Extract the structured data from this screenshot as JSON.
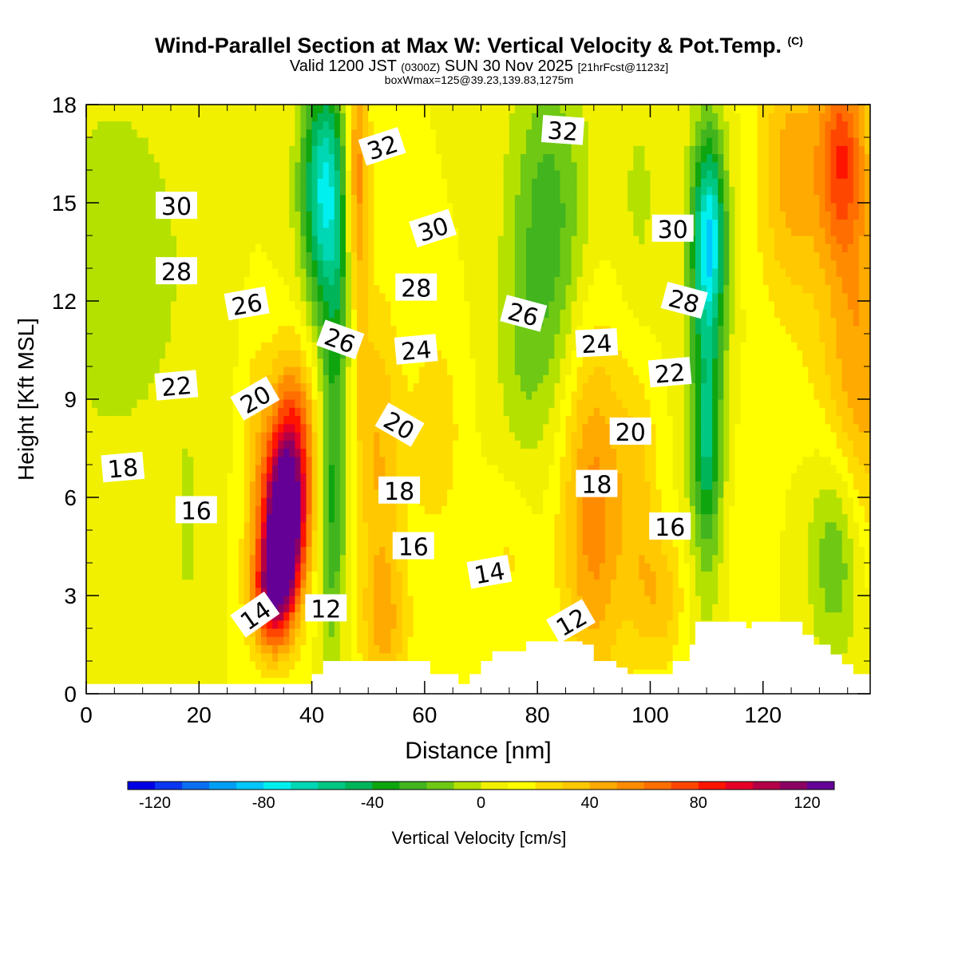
{
  "title": {
    "main": "Wind-Parallel Section at Max W: Vertical Velocity & Pot.Temp.",
    "copyright": "(C)",
    "valid_prefix": "Valid 1200 JST",
    "valid_z": "(0300Z)",
    "valid_date": "SUN 30 Nov 2025",
    "forecast": "[21hrFcst@1123z]",
    "box_info": "boxWmax=125@39.23,139.83,1275m"
  },
  "chart_data": {
    "type": "heatmap",
    "title": "Wind-Parallel Section at Max W: Vertical Velocity & Pot.Temp.",
    "xlabel": "Distance [nm]",
    "ylabel": "Height [Kft MSL]",
    "xlim": [
      0,
      139
    ],
    "ylim": [
      0,
      18
    ],
    "x_ticks": [
      "0",
      "20",
      "40",
      "60",
      "80",
      "100",
      "120"
    ],
    "y_ticks": [
      "0",
      "3",
      "6",
      "9",
      "12",
      "15",
      "18"
    ],
    "colorbar": {
      "label": "Vertical Velocity [cm/s]",
      "ticks": [
        "-120",
        "-80",
        "-40",
        "0",
        "40",
        "80",
        "120"
      ],
      "range": [
        -130,
        130
      ],
      "step": 10,
      "colors": [
        "#0000e6",
        "#0a37f0",
        "#0a6ef0",
        "#009ff5",
        "#00c8ff",
        "#00f0f0",
        "#00d7b4",
        "#00c882",
        "#00b45a",
        "#0fa50f",
        "#41b41e",
        "#6ec814",
        "#b4e100",
        "#f0f000",
        "#ffff00",
        "#ffdc00",
        "#ffc800",
        "#ffaa00",
        "#ff8c00",
        "#ff6e00",
        "#ff4600",
        "#ff1400",
        "#e60028",
        "#b40046",
        "#8c0064",
        "#640096"
      ]
    },
    "w_features": [
      {
        "x": 35,
        "z": 5.0,
        "sx": 2.6,
        "sz": 1.7,
        "w": 125
      },
      {
        "x": 36.5,
        "z": 7.5,
        "sx": 3.0,
        "sz": 2.0,
        "w": 70
      },
      {
        "x": 33,
        "z": 3.0,
        "sx": 2.5,
        "sz": 1.2,
        "w": 75
      },
      {
        "x": 30,
        "z": 7.0,
        "sx": 2.0,
        "sz": 3.0,
        "w": 18
      },
      {
        "x": 52,
        "z": 7.0,
        "sx": 3.0,
        "sz": 3.5,
        "w": 30
      },
      {
        "x": 53,
        "z": 2.0,
        "sx": 3.0,
        "sz": 1.6,
        "w": 25
      },
      {
        "x": 62,
        "z": 8.0,
        "sx": 3.0,
        "sz": 2.2,
        "w": 20
      },
      {
        "x": 75,
        "z": 4.5,
        "sx": 3.0,
        "sz": 2.0,
        "w": 15
      },
      {
        "x": 90,
        "z": 5.5,
        "sx": 4.0,
        "sz": 4.0,
        "w": 45
      },
      {
        "x": 98,
        "z": 6.0,
        "sx": 2.5,
        "sz": 3.0,
        "w": 20
      },
      {
        "x": 102,
        "z": 3.0,
        "sx": 3.0,
        "sz": 1.5,
        "w": 25
      },
      {
        "x": 137,
        "z": 10.0,
        "sx": 5.0,
        "sz": 4.0,
        "w": 40
      },
      {
        "x": 134,
        "z": 16.5,
        "sx": 3.0,
        "sz": 2.2,
        "w": 60
      },
      {
        "x": 125,
        "z": 16.0,
        "sx": 4.0,
        "sz": 3.0,
        "w": 35
      },
      {
        "x": 117,
        "z": 4.0,
        "sx": 2.5,
        "sz": 3.0,
        "w": 10
      },
      {
        "x": 45,
        "z": 10.5,
        "sx": 2.5,
        "sz": 4.0,
        "w": -40
      },
      {
        "x": 42,
        "z": 15.5,
        "sx": 2.8,
        "sz": 2.5,
        "w": -75
      },
      {
        "x": 43.5,
        "z": 5.0,
        "sx": 1.5,
        "sz": 3.0,
        "w": -30
      },
      {
        "x": 48,
        "z": 15.5,
        "sx": 1.5,
        "sz": 3.0,
        "w": 55
      },
      {
        "x": 47.5,
        "z": 9.0,
        "sx": 2.0,
        "sz": 2.2,
        "w": 20
      },
      {
        "x": 82,
        "z": 14.5,
        "sx": 5.0,
        "sz": 3.5,
        "w": -35
      },
      {
        "x": 78,
        "z": 10.0,
        "sx": 4.0,
        "sz": 2.5,
        "w": -12
      },
      {
        "x": 76,
        "z": 6.0,
        "sx": 3.0,
        "sz": 2.5,
        "w": -5
      },
      {
        "x": 110,
        "z": 10.5,
        "sx": 2.5,
        "sz": 5.0,
        "w": -40
      },
      {
        "x": 110,
        "z": 7.5,
        "sx": 1.5,
        "sz": 2.0,
        "w": -30
      },
      {
        "x": 110.5,
        "z": 14.0,
        "sx": 2.0,
        "sz": 2.0,
        "w": -65
      },
      {
        "x": 133,
        "z": 4.5,
        "sx": 3.5,
        "sz": 2.5,
        "w": -35
      },
      {
        "x": 5,
        "z": 13.0,
        "sx": 12.0,
        "sz": 5.0,
        "w": -15
      },
      {
        "x": 18,
        "z": 5.0,
        "sx": 1.2,
        "sz": 2.0,
        "w": -12
      },
      {
        "x": 98,
        "z": 15.0,
        "sx": 3.0,
        "sz": 3.0,
        "w": -12
      }
    ],
    "terrain": [
      [
        0,
        0.3
      ],
      [
        39,
        0.3
      ],
      [
        40,
        0.6
      ],
      [
        42,
        1.0
      ],
      [
        44,
        1.0
      ],
      [
        55,
        1.0
      ],
      [
        61,
        0.6
      ],
      [
        64,
        0.6
      ],
      [
        66,
        0.3
      ],
      [
        68,
        0.6
      ],
      [
        70,
        1.0
      ],
      [
        72,
        1.3
      ],
      [
        78,
        1.6
      ],
      [
        88,
        1.5
      ],
      [
        90,
        1.0
      ],
      [
        94,
        0.8
      ],
      [
        96,
        0.6
      ],
      [
        100,
        0.6
      ],
      [
        104,
        1.0
      ],
      [
        107,
        1.5
      ],
      [
        108,
        2.2
      ],
      [
        114,
        2.2
      ],
      [
        117,
        2.0
      ],
      [
        118,
        2.2
      ],
      [
        124,
        2.2
      ],
      [
        127,
        1.8
      ],
      [
        129,
        1.5
      ],
      [
        132,
        1.2
      ],
      [
        134,
        0.9
      ],
      [
        136,
        0.6
      ],
      [
        139,
        0.6
      ]
    ],
    "theta_contours": {
      "levels_from": 11,
      "levels_to": 34,
      "step": 1,
      "labeled_levels": [
        "12",
        "14",
        "16",
        "18",
        "20",
        "22",
        "24",
        "26",
        "28",
        "30",
        "32"
      ],
      "base_profile": [
        [
          0,
          1.8
        ],
        [
          3,
          3.2
        ],
        [
          9,
          5.4
        ],
        [
          14,
          6.6
        ],
        [
          18,
          7.8
        ],
        [
          22,
          9.8
        ],
        [
          26,
          11.2
        ],
        [
          30,
          14.2
        ],
        [
          34,
          16.8
        ],
        [
          40,
          21.2
        ]
      ],
      "perturbations": [
        {
          "x": 33,
          "z": 8.0,
          "sx": 3.0,
          "sz": 3.0,
          "dz": -1.8
        },
        {
          "x": 34,
          "z": 4.0,
          "sx": 2.0,
          "sz": 2.0,
          "dz": -0.6
        },
        {
          "x": 41,
          "z": 11.0,
          "sx": 3.0,
          "sz": 4.0,
          "dz": 0.8
        },
        {
          "x": 49,
          "z": 9.0,
          "sx": 3.5,
          "sz": 3.0,
          "dz": -1.0
        },
        {
          "x": 54,
          "z": 2.5,
          "sx": 4.0,
          "sz": 1.5,
          "dz": 0.3
        },
        {
          "x": 60,
          "z": 10.0,
          "sx": 4.0,
          "sz": 2.0,
          "dz": 0.3
        },
        {
          "x": 78,
          "z": 9.5,
          "sx": 3.0,
          "sz": 3.0,
          "dz": -0.8
        },
        {
          "x": 82,
          "z": 13.0,
          "sx": 5.0,
          "sz": 3.0,
          "dz": 0.4
        },
        {
          "x": 90,
          "z": 7.0,
          "sx": 4.0,
          "sz": 3.0,
          "dz": -0.6
        },
        {
          "x": 110,
          "z": 10.0,
          "sx": 3.0,
          "sz": 5.0,
          "dz": 0.7
        },
        {
          "x": 128,
          "z": 14.0,
          "sx": 8.0,
          "sz": 5.0,
          "dz": -1.0
        },
        {
          "x": 100,
          "z": 6.0,
          "sx": 8.0,
          "sz": 3.0,
          "dz": 0.4
        },
        {
          "x": 6,
          "z": 7.0,
          "sx": 6.0,
          "sz": 3.0,
          "dz": -0.3
        }
      ],
      "labels": [
        {
          "text": "32",
          "x": 52.5,
          "z": 16.7,
          "angle": -18
        },
        {
          "text": "32",
          "x": 84.5,
          "z": 17.2,
          "angle": 4
        },
        {
          "text": "30",
          "x": 16,
          "z": 14.9,
          "angle": 0
        },
        {
          "text": "30",
          "x": 61.5,
          "z": 14.2,
          "angle": -18
        },
        {
          "text": "30",
          "x": 104,
          "z": 14.2,
          "angle": 0
        },
        {
          "text": "28",
          "x": 16,
          "z": 12.9,
          "angle": 0
        },
        {
          "text": "28",
          "x": 58.5,
          "z": 12.4,
          "angle": 0
        },
        {
          "text": "28",
          "x": 106,
          "z": 12.0,
          "angle": 15
        },
        {
          "text": "26",
          "x": 28.5,
          "z": 11.9,
          "angle": -10
        },
        {
          "text": "26",
          "x": 45,
          "z": 10.8,
          "angle": 20
        },
        {
          "text": "26",
          "x": 77.5,
          "z": 11.6,
          "angle": 15
        },
        {
          "text": "24",
          "x": 58.5,
          "z": 10.5,
          "angle": -5
        },
        {
          "text": "24",
          "x": 90.5,
          "z": 10.7,
          "angle": -3
        },
        {
          "text": "22",
          "x": 16,
          "z": 9.4,
          "angle": -5
        },
        {
          "text": "22",
          "x": 103.5,
          "z": 9.8,
          "angle": -5
        },
        {
          "text": "20",
          "x": 30,
          "z": 9.0,
          "angle": -30
        },
        {
          "text": "20",
          "x": 55.5,
          "z": 8.2,
          "angle": 30
        },
        {
          "text": "20",
          "x": 96.5,
          "z": 8.0,
          "angle": 0
        },
        {
          "text": "18",
          "x": 6.5,
          "z": 6.9,
          "angle": -5
        },
        {
          "text": "18",
          "x": 55.5,
          "z": 6.2,
          "angle": 0
        },
        {
          "text": "18",
          "x": 90.5,
          "z": 6.4,
          "angle": 0
        },
        {
          "text": "16",
          "x": 19.5,
          "z": 5.6,
          "angle": 0
        },
        {
          "text": "16",
          "x": 58,
          "z": 4.5,
          "angle": 0
        },
        {
          "text": "16",
          "x": 103.5,
          "z": 5.1,
          "angle": 0
        },
        {
          "text": "14",
          "x": 30,
          "z": 2.4,
          "angle": -35
        },
        {
          "text": "14",
          "x": 71.5,
          "z": 3.7,
          "angle": -10
        },
        {
          "text": "12",
          "x": 42.5,
          "z": 2.6,
          "angle": 0
        },
        {
          "text": "12",
          "x": 86,
          "z": 2.2,
          "angle": -30
        }
      ]
    }
  }
}
